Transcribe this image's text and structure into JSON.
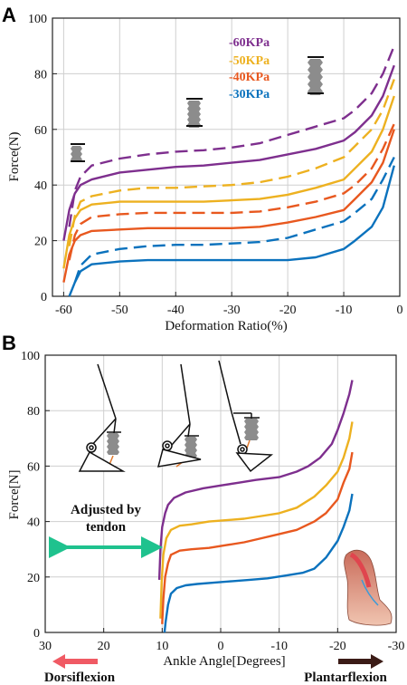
{
  "colors": {
    "purple": "#7e2f8e",
    "yellow": "#edb120",
    "orange": "#e8581f",
    "blue": "#0b72bd",
    "teal": "#1fc28e",
    "red_arrow": "#f05a64",
    "dark_arrow": "#3b1b16",
    "actuator": "#8c8c8c",
    "tendon": "#e07a2e"
  },
  "chart_data": [
    {
      "panel": "A",
      "type": "line",
      "xlabel": "Deformation Ratio(%)",
      "ylabel": "Force(N)",
      "xlim": [
        -62,
        0
      ],
      "ylim": [
        0,
        100
      ],
      "xticks": [
        "-60",
        "-50",
        "-40",
        "-30",
        "-20",
        "-10",
        "0"
      ],
      "yticks": [
        "0",
        "20",
        "40",
        "60",
        "80",
        "100"
      ],
      "grid": true,
      "legend_position": "top-right",
      "legend": [
        "-60KPa",
        "-50KPa",
        "-40KPa",
        "-30KPa"
      ],
      "series": [
        {
          "name": "-60KPa",
          "color_key": "purple",
          "style": "solid",
          "x": [
            -60,
            -59,
            -58,
            -57,
            -55,
            -50,
            -45,
            -40,
            -35,
            -30,
            -25,
            -20,
            -15,
            -10,
            -8,
            -5,
            -3,
            -1
          ],
          "y": [
            20,
            31,
            37,
            40,
            42,
            44.5,
            45.5,
            46.5,
            47,
            48,
            49,
            51,
            53,
            56,
            59,
            65,
            72,
            83
          ]
        },
        {
          "name": "-60KPa",
          "color_key": "purple",
          "style": "dashed",
          "x": [
            -59,
            -58,
            -57,
            -55,
            -50,
            -45,
            -40,
            -35,
            -30,
            -25,
            -20,
            -15,
            -10,
            -8,
            -5,
            -3,
            -1
          ],
          "y": [
            25,
            38,
            43,
            47,
            49.5,
            51,
            52,
            52.5,
            53.5,
            55,
            58,
            61,
            64,
            67,
            73,
            80,
            90
          ]
        },
        {
          "name": "-50KPa",
          "color_key": "yellow",
          "style": "solid",
          "x": [
            -60,
            -59,
            -58,
            -57,
            -55,
            -50,
            -45,
            -40,
            -35,
            -30,
            -25,
            -20,
            -15,
            -10,
            -8,
            -5,
            -3,
            -1
          ],
          "y": [
            10,
            22,
            28,
            31,
            33,
            34,
            34,
            34,
            34,
            34.5,
            35,
            36.5,
            39,
            42,
            46,
            52,
            60,
            72
          ]
        },
        {
          "name": "-50KPa",
          "color_key": "yellow",
          "style": "dashed",
          "x": [
            -59,
            -58,
            -57,
            -55,
            -50,
            -45,
            -40,
            -35,
            -30,
            -25,
            -20,
            -15,
            -10,
            -8,
            -5,
            -3,
            -1
          ],
          "y": [
            18,
            29,
            34,
            36,
            38,
            39,
            39,
            39.5,
            40,
            41,
            43,
            46,
            50,
            54,
            60,
            67,
            78
          ]
        },
        {
          "name": "-40KPa",
          "color_key": "orange",
          "style": "solid",
          "x": [
            -60,
            -59,
            -58,
            -57,
            -55,
            -50,
            -45,
            -40,
            -35,
            -30,
            -25,
            -20,
            -15,
            -10,
            -8,
            -5,
            -3,
            -1
          ],
          "y": [
            5,
            15,
            20,
            22,
            23.5,
            24,
            24.5,
            24.5,
            24.5,
            24.5,
            25,
            26.5,
            28.5,
            31,
            35,
            41,
            48,
            60
          ]
        },
        {
          "name": "-40KPa",
          "color_key": "orange",
          "style": "dashed",
          "x": [
            -59,
            -58,
            -57,
            -55,
            -50,
            -45,
            -40,
            -35,
            -30,
            -25,
            -20,
            -15,
            -10,
            -8,
            -5,
            -3,
            -1
          ],
          "y": [
            13,
            22,
            26,
            28.5,
            29.5,
            30,
            30,
            30,
            30,
            30.5,
            32,
            34,
            37,
            40,
            46,
            53,
            62
          ]
        },
        {
          "name": "-30KPa",
          "color_key": "blue",
          "style": "solid",
          "x": [
            -59,
            -58,
            -57,
            -55,
            -50,
            -45,
            -40,
            -35,
            -30,
            -25,
            -20,
            -15,
            -10,
            -8,
            -5,
            -3,
            -1
          ],
          "y": [
            0,
            5,
            9,
            11.5,
            12.5,
            13,
            13,
            13,
            13,
            13,
            13,
            14,
            17,
            20,
            25,
            32,
            47
          ]
        },
        {
          "name": "-30KPa",
          "color_key": "blue",
          "style": "dashed",
          "x": [
            -58,
            -57,
            -55,
            -50,
            -45,
            -40,
            -35,
            -30,
            -25,
            -20,
            -15,
            -10,
            -8,
            -5,
            -3,
            -1
          ],
          "y": [
            5,
            11,
            15,
            17,
            18,
            18.5,
            18.5,
            19,
            19.5,
            21,
            24,
            27,
            30,
            35,
            42,
            50
          ]
        }
      ]
    },
    {
      "panel": "B",
      "type": "line",
      "xlabel": "Ankle Angle[Degrees]",
      "ylabel": "Force[N]",
      "xlim": [
        30,
        -30
      ],
      "ylim": [
        0,
        100
      ],
      "xticks": [
        "30",
        "20",
        "10",
        "0",
        "-10",
        "-20",
        "-30"
      ],
      "yticks": [
        "0",
        "20",
        "40",
        "60",
        "80",
        "100"
      ],
      "grid": true,
      "series": [
        {
          "color_key": "purple",
          "x": [
            10.5,
            10.3,
            10,
            9.5,
            9,
            8,
            6,
            3,
            0,
            -3,
            -6,
            -10,
            -13,
            -15,
            -17,
            -19,
            -20,
            -21,
            -22,
            -22.5
          ],
          "y": [
            19,
            30,
            38,
            43,
            46,
            48.5,
            50.5,
            52,
            53,
            54,
            55,
            56,
            58,
            60,
            63,
            68,
            73,
            79,
            86,
            91
          ]
        },
        {
          "color_key": "yellow",
          "x": [
            10.3,
            10.1,
            9.8,
            9.3,
            8.5,
            7,
            5,
            2,
            -1,
            -4,
            -7,
            -10,
            -13,
            -16,
            -18,
            -20,
            -21,
            -22,
            -22.5
          ],
          "y": [
            5,
            18,
            28,
            34,
            37,
            38.5,
            39,
            40,
            40.5,
            41,
            42,
            43,
            45,
            49,
            53,
            58,
            63,
            70,
            76
          ]
        },
        {
          "color_key": "orange",
          "x": [
            10,
            9.8,
            9.5,
            9,
            8.5,
            7,
            5,
            2,
            -1,
            -4,
            -7,
            -10,
            -13,
            -16,
            -18,
            -20,
            -21,
            -22,
            -22.5
          ],
          "y": [
            3,
            12,
            20,
            25,
            28,
            29.5,
            30,
            30.5,
            31.5,
            32.5,
            34,
            35.5,
            37,
            40,
            43,
            48,
            54,
            59,
            65
          ]
        },
        {
          "color_key": "blue",
          "x": [
            9.6,
            9.4,
            9,
            8.5,
            7.5,
            6,
            4,
            1,
            -2,
            -5,
            -8,
            -11,
            -14,
            -16,
            -18,
            -20,
            -21,
            -22,
            -22.5
          ],
          "y": [
            0,
            4,
            10,
            14,
            16,
            17,
            17.5,
            18,
            18.5,
            19,
            19.5,
            20.5,
            21.5,
            23,
            27,
            33,
            38,
            44,
            50
          ]
        }
      ]
    }
  ],
  "panel_labels": {
    "a": "A",
    "b": "B"
  },
  "annotations": {
    "adjusted_line1": "Adjusted by",
    "adjusted_line2": "tendon",
    "dorsiflexion": "Dorsiflexion",
    "plantarflexion": "Plantarflexion"
  }
}
